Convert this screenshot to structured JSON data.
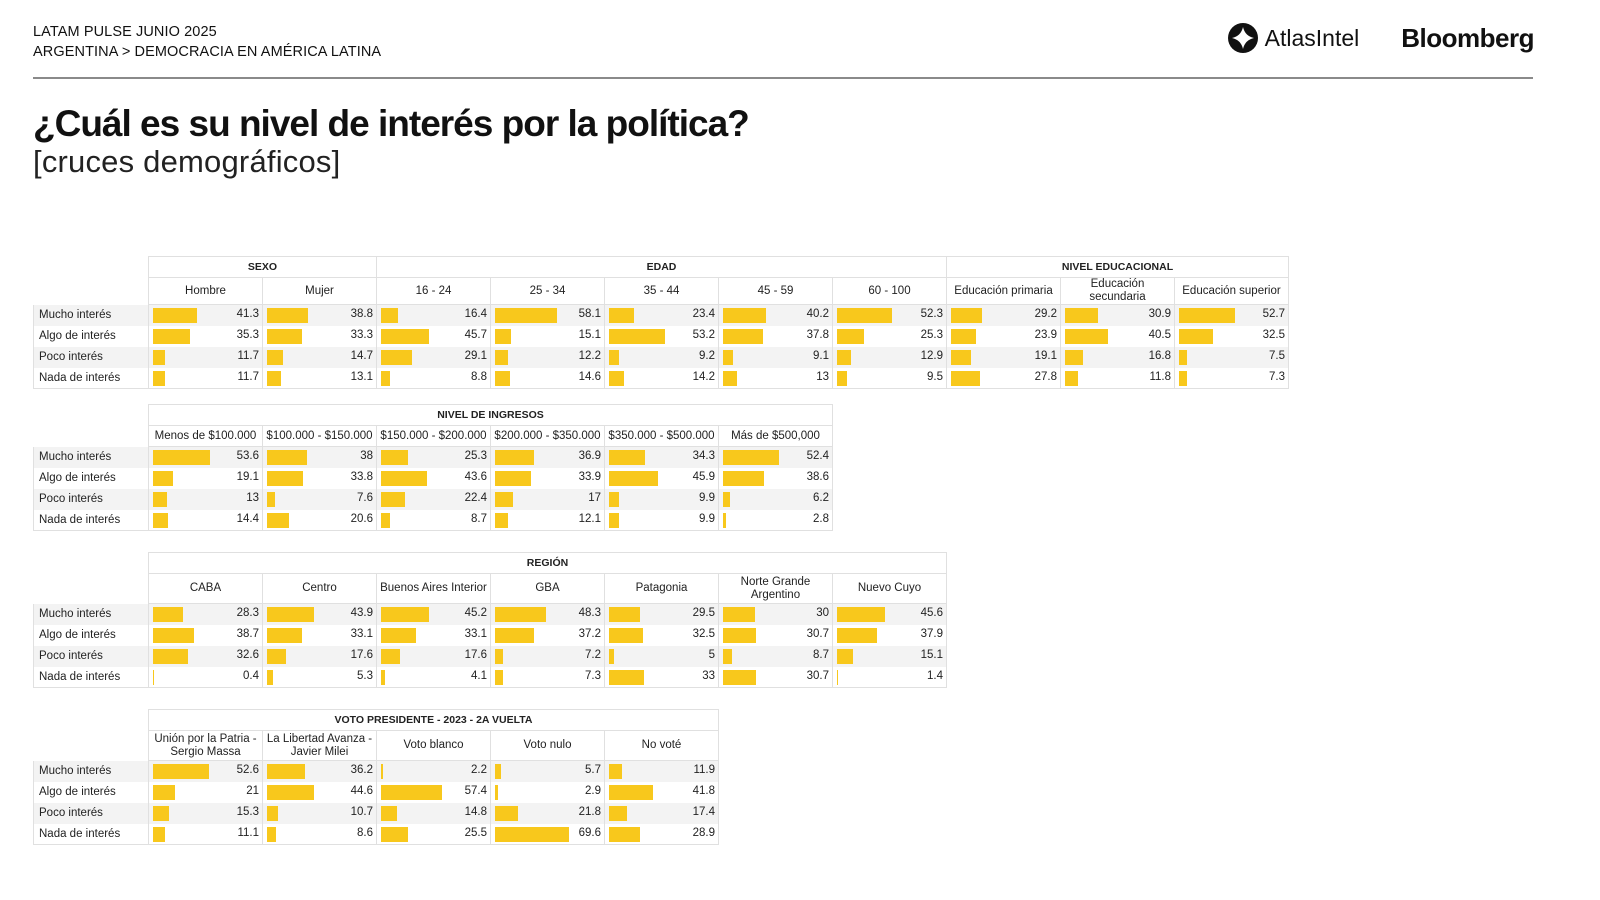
{
  "header": {
    "kicker_line1": "LATAM PULSE JUNIO 2025",
    "kicker_line2": "ARGENTINA > DEMOCRACIA EN AMÉRICA LATINA",
    "logo_atlas": "AtlasIntel",
    "logo_bloomberg": "Bloomberg",
    "title": "¿Cuál es su nivel de interés por la política?",
    "subtitle": "[cruces demográficos]"
  },
  "colors": {
    "bar": "#f8c81c",
    "rule": "#8a8a8a",
    "grid": "#e0e0e0",
    "stripe": "#f3f3f3"
  },
  "chart_data": {
    "type": "table",
    "title": "¿Cuál es su nivel de interés por la política?",
    "subtitle": "[cruces demográficos]",
    "row_labels": [
      "Mucho interés",
      "Algo de interés",
      "Poco interés",
      "Nada de interés"
    ],
    "bar_scale_max": 100,
    "tables": [
      {
        "groups": [
          {
            "name": "SEXO",
            "columns": [
              {
                "label": "Hombre",
                "values": [
                  41.3,
                  35.3,
                  11.7,
                  11.7
                ]
              },
              {
                "label": "Mujer",
                "values": [
                  38.8,
                  33.3,
                  14.7,
                  13.1
                ]
              }
            ]
          },
          {
            "name": "EDAD",
            "columns": [
              {
                "label": "16 - 24",
                "values": [
                  16.4,
                  45.7,
                  29.1,
                  8.8
                ]
              },
              {
                "label": "25 - 34",
                "values": [
                  58.1,
                  15.1,
                  12.2,
                  14.6
                ]
              },
              {
                "label": "35 - 44",
                "values": [
                  23.4,
                  53.2,
                  9.2,
                  14.2
                ]
              },
              {
                "label": "45 - 59",
                "values": [
                  40.2,
                  37.8,
                  9.1,
                  13
                ]
              },
              {
                "label": "60 - 100",
                "values": [
                  52.3,
                  25.3,
                  12.9,
                  9.5
                ]
              }
            ]
          },
          {
            "name": "NIVEL EDUCACIONAL",
            "columns": [
              {
                "label": "Educación primaria",
                "values": [
                  29.2,
                  23.9,
                  19.1,
                  27.8
                ]
              },
              {
                "label": "Educación secundaria",
                "values": [
                  30.9,
                  40.5,
                  16.8,
                  11.8
                ]
              },
              {
                "label": "Educación superior",
                "values": [
                  52.7,
                  32.5,
                  7.5,
                  7.3
                ]
              }
            ]
          }
        ]
      },
      {
        "groups": [
          {
            "name": "NIVEL DE INGRESOS",
            "columns": [
              {
                "label": "Menos de $100.000",
                "values": [
                  53.6,
                  19.1,
                  13,
                  14.4
                ]
              },
              {
                "label": "$100.000 - $150.000",
                "values": [
                  38,
                  33.8,
                  7.6,
                  20.6
                ]
              },
              {
                "label": "$150.000 - $200.000",
                "values": [
                  25.3,
                  43.6,
                  22.4,
                  8.7
                ]
              },
              {
                "label": "$200.000 - $350.000",
                "values": [
                  36.9,
                  33.9,
                  17,
                  12.1
                ]
              },
              {
                "label": "$350.000 - $500.000",
                "values": [
                  34.3,
                  45.9,
                  9.9,
                  9.9
                ]
              },
              {
                "label": "Más de $500,000",
                "values": [
                  52.4,
                  38.6,
                  6.2,
                  2.8
                ]
              }
            ]
          }
        ]
      },
      {
        "tall_header": true,
        "groups": [
          {
            "name": "REGIÓN",
            "columns": [
              {
                "label": "CABA",
                "values": [
                  28.3,
                  38.7,
                  32.6,
                  0.4
                ]
              },
              {
                "label": "Centro",
                "values": [
                  43.9,
                  33.1,
                  17.6,
                  5.3
                ]
              },
              {
                "label": "Buenos Aires Interior",
                "values": [
                  45.2,
                  33.1,
                  17.6,
                  4.1
                ]
              },
              {
                "label": "GBA",
                "values": [
                  48.3,
                  37.2,
                  7.2,
                  7.3
                ]
              },
              {
                "label": "Patagonia",
                "values": [
                  29.5,
                  32.5,
                  5,
                  33
                ]
              },
              {
                "label": "Norte Grande Argentino",
                "values": [
                  30,
                  30.7,
                  8.7,
                  30.7
                ]
              },
              {
                "label": "Nuevo Cuyo",
                "values": [
                  45.6,
                  37.9,
                  15.1,
                  1.4
                ]
              }
            ]
          }
        ]
      },
      {
        "tall_header": true,
        "groups": [
          {
            "name": "VOTO PRESIDENTE - 2023 - 2A VUELTA",
            "columns": [
              {
                "label": "Unión por la Patria - Sergio Massa",
                "values": [
                  52.6,
                  21,
                  15.3,
                  11.1
                ]
              },
              {
                "label": "La Libertad Avanza - Javier Milei",
                "values": [
                  36.2,
                  44.6,
                  10.7,
                  8.6
                ]
              },
              {
                "label": "Voto blanco",
                "values": [
                  2.2,
                  57.4,
                  14.8,
                  25.5
                ]
              },
              {
                "label": "Voto nulo",
                "values": [
                  5.7,
                  2.9,
                  21.8,
                  69.6
                ]
              },
              {
                "label": "No voté",
                "values": [
                  11.9,
                  41.8,
                  17.4,
                  28.9
                ]
              }
            ]
          }
        ]
      }
    ]
  }
}
